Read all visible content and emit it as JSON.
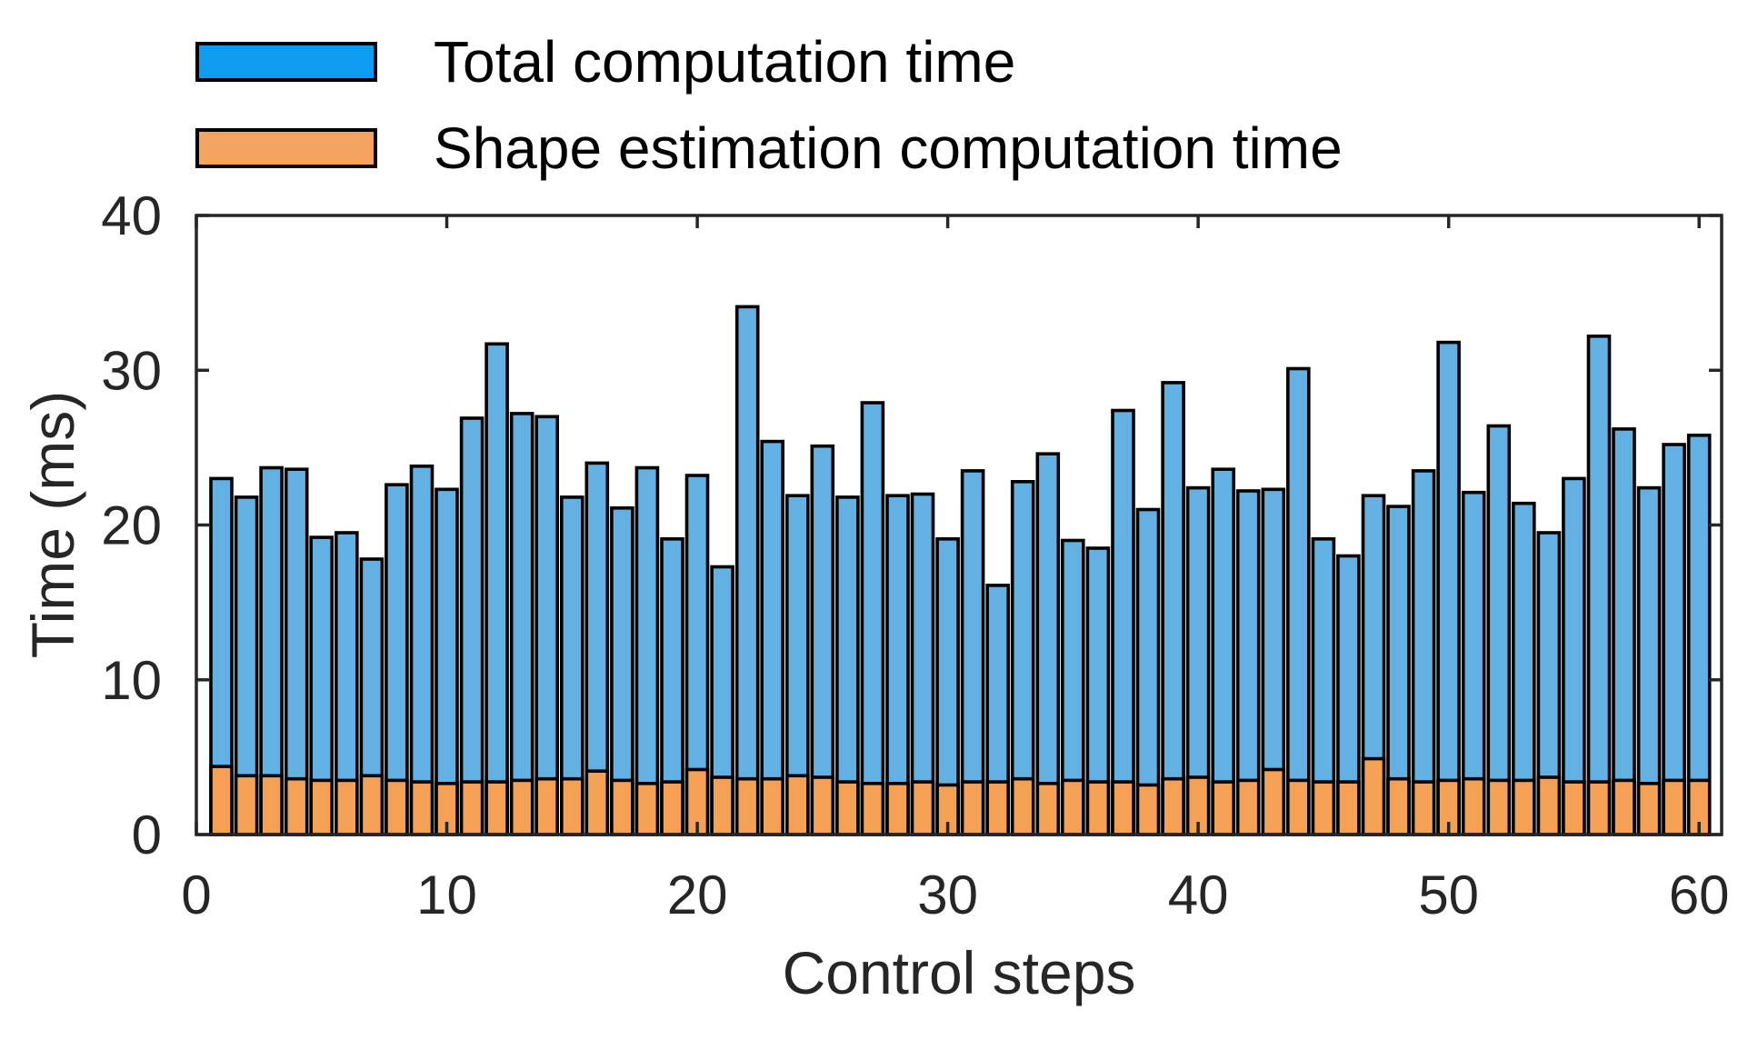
{
  "background": "#ffffff",
  "legend": {
    "items": [
      {
        "label": "Total computation time",
        "color": "#0E9CF1"
      },
      {
        "label": "Shape estimation computation time",
        "color": "#F5A460"
      }
    ]
  },
  "chart_data": {
    "type": "bar",
    "mode": "overlaid",
    "title": "",
    "xlabel": "Control steps",
    "ylabel": "Time (ms)",
    "xlim": [
      0,
      60.9
    ],
    "ylim": [
      0,
      40
    ],
    "x_ticks": [
      0,
      10,
      20,
      30,
      40,
      50,
      60
    ],
    "y_ticks": [
      0,
      10,
      20,
      30,
      40
    ],
    "bar_width": 0.8,
    "edge_color": "#000000",
    "axis_color": "#262626",
    "grid": false,
    "legend_position": "top-left-outside",
    "x": [
      1,
      2,
      3,
      4,
      5,
      6,
      7,
      8,
      9,
      10,
      11,
      12,
      13,
      14,
      15,
      16,
      17,
      18,
      19,
      20,
      21,
      22,
      23,
      24,
      25,
      26,
      27,
      28,
      29,
      30,
      31,
      32,
      33,
      34,
      35,
      36,
      37,
      38,
      39,
      40,
      41,
      42,
      43,
      44,
      45,
      46,
      47,
      48,
      49,
      50,
      51,
      52,
      53,
      54,
      55,
      56,
      57,
      58,
      59,
      60
    ],
    "series": [
      {
        "name": "Total computation time",
        "color": "#63B0E3",
        "legend_color": "#0E9CF1",
        "values": [
          23.0,
          21.8,
          23.7,
          23.6,
          19.2,
          19.5,
          17.8,
          22.6,
          23.8,
          22.3,
          26.9,
          31.7,
          27.2,
          27.0,
          21.8,
          24.0,
          21.1,
          23.7,
          19.1,
          23.2,
          17.3,
          34.1,
          25.4,
          21.9,
          25.1,
          21.8,
          27.9,
          21.9,
          22.0,
          19.1,
          23.5,
          16.1,
          22.8,
          24.6,
          19.0,
          18.5,
          27.4,
          21.0,
          29.2,
          22.4,
          23.6,
          22.2,
          22.3,
          30.1,
          19.1,
          18.0,
          21.9,
          21.2,
          23.5,
          31.8,
          22.1,
          26.4,
          21.4,
          19.5,
          23.0,
          32.2,
          26.2,
          22.4,
          25.2,
          25.8
        ]
      },
      {
        "name": "Shape estimation computation time",
        "color": "#F5A155",
        "legend_color": "#F5A460",
        "values": [
          4.4,
          3.8,
          3.8,
          3.6,
          3.5,
          3.5,
          3.8,
          3.5,
          3.4,
          3.3,
          3.4,
          3.4,
          3.5,
          3.6,
          3.6,
          4.1,
          3.5,
          3.3,
          3.4,
          4.2,
          3.7,
          3.6,
          3.6,
          3.8,
          3.7,
          3.4,
          3.3,
          3.3,
          3.4,
          3.2,
          3.4,
          3.4,
          3.6,
          3.3,
          3.5,
          3.4,
          3.4,
          3.2,
          3.6,
          3.7,
          3.4,
          3.5,
          4.2,
          3.5,
          3.4,
          3.4,
          4.9,
          3.6,
          3.4,
          3.5,
          3.6,
          3.5,
          3.5,
          3.7,
          3.4,
          3.4,
          3.5,
          3.3,
          3.5,
          3.5
        ]
      }
    ]
  }
}
